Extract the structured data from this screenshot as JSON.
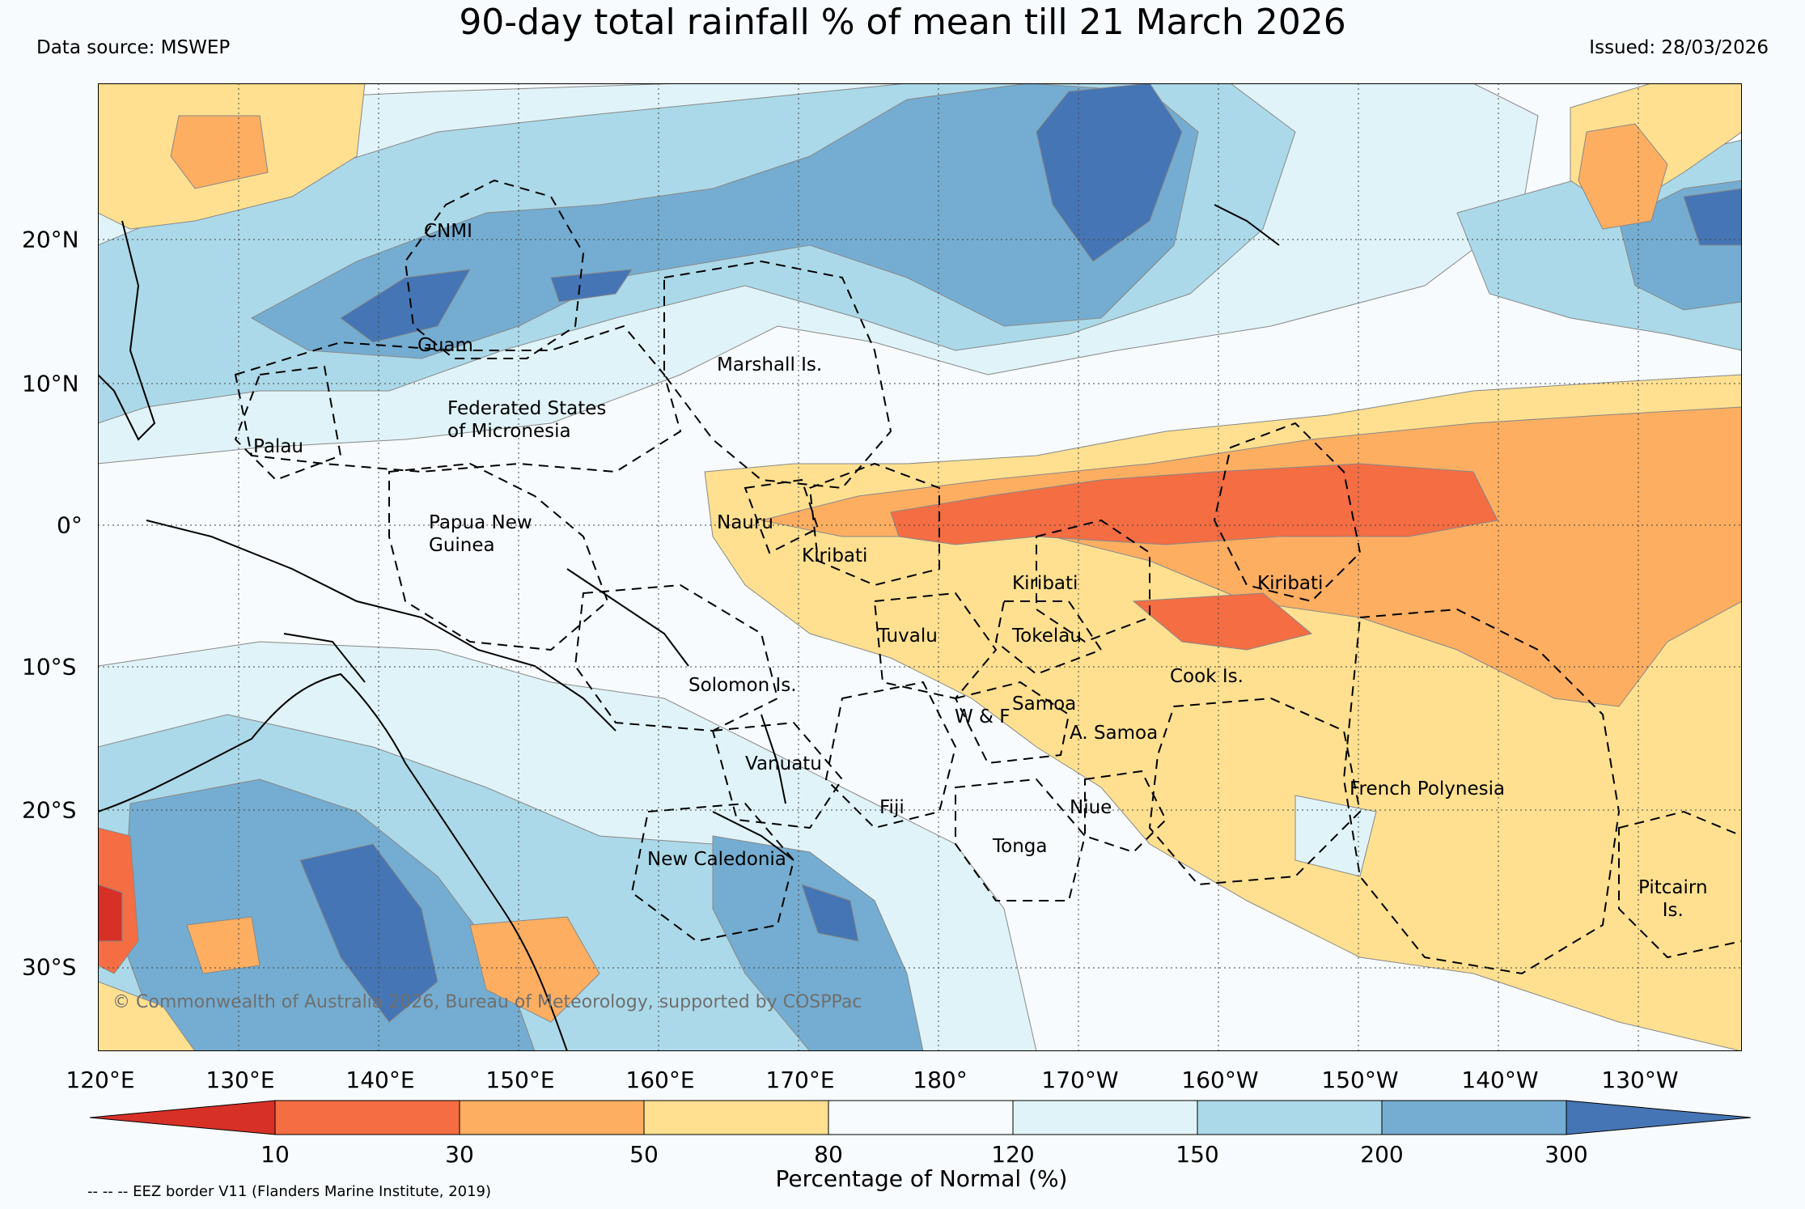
{
  "header": {
    "title": "90-day total rainfall % of mean till 21 March 2026",
    "source": "Data source: MSWEP",
    "issued": "Issued: 28/03/2026"
  },
  "map": {
    "lon_labels": [
      "120°E",
      "130°E",
      "140°E",
      "150°E",
      "160°E",
      "170°E",
      "180°",
      "170°W",
      "160°W",
      "150°W",
      "140°W",
      "130°W"
    ],
    "lat_labels": [
      "20°N",
      "10°N",
      "0°",
      "10°S",
      "20°S",
      "30°S"
    ],
    "region_labels": {
      "cnmi": "CNMI",
      "guam": "Guam",
      "marshall": "Marshall Is.",
      "fsm": "Federated States\nof Micronesia",
      "palau": "Palau",
      "png": "Papua New\nGuinea",
      "nauru": "Nauru",
      "kiribati_west": "Kiribati",
      "kiribati_central": "Kiribati",
      "kiribati_east": "Kiribati",
      "tuvalu": "Tuvalu",
      "tokelau": "Tokelau",
      "solomon": "Solomon Is.",
      "samoa": "Samoa",
      "wallis_futuna": "W & F",
      "american_samoa": "A. Samoa",
      "cook": "Cook Is.",
      "vanuatu": "Vanuatu",
      "fiji": "Fiji",
      "niue": "Niue",
      "tonga": "Tonga",
      "french_polynesia": "French Polynesia",
      "new_caledonia": "New Caledonia",
      "pitcairn": "Pitcairn\nIs."
    },
    "copyright": "© Commonwealth of Australia 2026, Bureau of Meteorology, supported by COSPPac"
  },
  "colorbar": {
    "title": "Percentage of Normal (%)",
    "ticks": [
      "10",
      "30",
      "50",
      "80",
      "120",
      "150",
      "200",
      "300"
    ],
    "colors": [
      "#d73027",
      "#f46d43",
      "#fdae61",
      "#fee090",
      "#f7fbfd",
      "#e0f3f8",
      "#abd9e9",
      "#74add1",
      "#4575b4"
    ]
  },
  "footnote": "-- -- -- EEZ border V11 (Flanders Marine Institute, 2019)"
}
